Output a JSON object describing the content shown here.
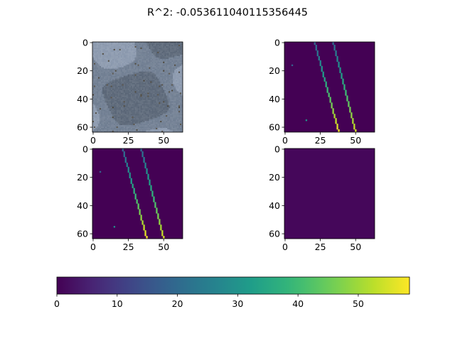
{
  "title": "R^2: -0.053611040115356445",
  "chart_data": [
    {
      "type": "heatmap",
      "role": "input-image",
      "xlim": [
        0,
        63
      ],
      "ylim": [
        63,
        0
      ],
      "xticks": [
        "0",
        "25",
        "50"
      ],
      "yticks": [
        "0",
        "20",
        "40",
        "60"
      ],
      "colors": [
        "#8a98ad",
        "#6f7d91",
        "#5a6677",
        "#4a4438"
      ]
    },
    {
      "type": "heatmap",
      "role": "target",
      "xlim": [
        0,
        63
      ],
      "ylim": [
        63,
        0
      ],
      "xticks": [
        "0",
        "25",
        "50"
      ],
      "yticks": [
        "0",
        "20",
        "40",
        "60"
      ],
      "lines": [
        {
          "x0": 21,
          "x1": 38,
          "y0": 0,
          "y1": 63,
          "v0": 18,
          "v1": 58
        },
        {
          "x0": 34,
          "x1": 50,
          "y0": 0,
          "y1": 63,
          "v0": 20,
          "v1": 55
        }
      ],
      "points": [
        {
          "x": 5,
          "y": 16,
          "v": 18
        },
        {
          "x": 15,
          "y": 55,
          "v": 30
        }
      ]
    },
    {
      "type": "heatmap",
      "role": "prediction",
      "xlim": [
        0,
        63
      ],
      "ylim": [
        63,
        0
      ],
      "xticks": [
        "0",
        "25",
        "50"
      ],
      "yticks": [
        "0",
        "20",
        "40",
        "60"
      ],
      "lines": [
        {
          "x0": 21,
          "x1": 38,
          "y0": 0,
          "y1": 63,
          "v0": 18,
          "v1": 58
        },
        {
          "x0": 34,
          "x1": 50,
          "y0": 0,
          "y1": 63,
          "v0": 20,
          "v1": 55
        }
      ],
      "points": [
        {
          "x": 5,
          "y": 16,
          "v": 18
        },
        {
          "x": 15,
          "y": 55,
          "v": 30
        }
      ]
    },
    {
      "type": "heatmap",
      "role": "difference",
      "xlim": [
        0,
        63
      ],
      "ylim": [
        63,
        0
      ],
      "xticks": [
        "0",
        "25",
        "50"
      ],
      "yticks": [
        "0",
        "20",
        "40",
        "60"
      ],
      "fill_value": 1
    },
    {
      "type": "colorbar",
      "orientation": "horizontal",
      "range": [
        0,
        58.5
      ],
      "ticks": [
        0,
        10,
        20,
        30,
        40,
        50
      ],
      "tick_labels": [
        "0",
        "10",
        "20",
        "30",
        "40",
        "50"
      ],
      "colormap": "viridis"
    }
  ]
}
